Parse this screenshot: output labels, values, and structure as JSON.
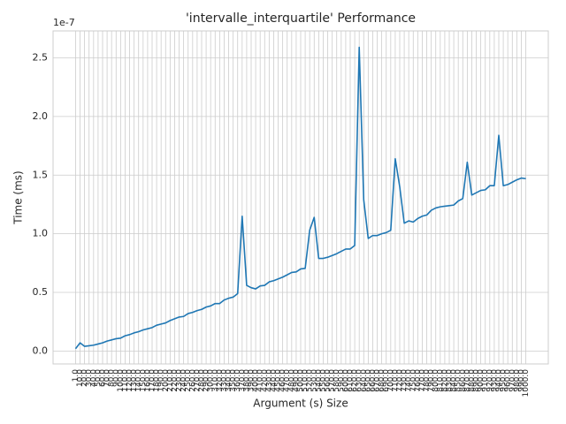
{
  "chart_data": {
    "type": "line",
    "title": "'intervalle_interquartile' Performance",
    "x_label": "Argument (s) Size",
    "y_label": "Time (ms)",
    "y_offset_label": "1e-7",
    "categories": [
      "1.0",
      "10.0",
      "20.0",
      "30.0",
      "40.0",
      "50.0",
      "60.0",
      "70.0",
      "80.0",
      "90.0",
      "100.0",
      "110.0",
      "120.0",
      "130.0",
      "140.0",
      "150.0",
      "160.0",
      "170.0",
      "180.0",
      "190.0",
      "200.0",
      "210.0",
      "220.0",
      "230.0",
      "240.0",
      "250.0",
      "260.0",
      "270.0",
      "280.0",
      "290.0",
      "300.0",
      "310.0",
      "320.0",
      "330.0",
      "340.0",
      "350.0",
      "360.0",
      "370.0",
      "380.0",
      "390.0",
      "400.0",
      "410.0",
      "420.0",
      "430.0",
      "440.0",
      "450.0",
      "460.0",
      "470.0",
      "480.0",
      "490.0",
      "500.0",
      "510.0",
      "520.0",
      "530.0",
      "540.0",
      "550.0",
      "560.0",
      "570.0",
      "580.0",
      "590.0",
      "600.0",
      "610.0",
      "620.0",
      "630.0",
      "640.0",
      "650.0",
      "660.0",
      "670.0",
      "680.0",
      "690.0",
      "700.0",
      "710.0",
      "720.0",
      "730.0",
      "740.0",
      "750.0",
      "760.0",
      "770.0",
      "780.0",
      "790.0",
      "800.0",
      "810.0",
      "820.0",
      "830.0",
      "840.0",
      "850.0",
      "860.0",
      "870.0",
      "880.0",
      "890.0",
      "900.0",
      "910.0",
      "920.0",
      "930.0",
      "940.0",
      "950.0",
      "960.0",
      "970.0",
      "980.0",
      "990.0",
      "1000.0"
    ],
    "series": [
      {
        "name": "intervalle_interquartile",
        "color": "#1f77b4",
        "values": [
          0.02,
          0.07,
          0.04,
          0.045,
          0.05,
          0.06,
          0.07,
          0.085,
          0.095,
          0.105,
          0.11,
          0.13,
          0.14,
          0.155,
          0.165,
          0.18,
          0.19,
          0.2,
          0.22,
          0.23,
          0.24,
          0.26,
          0.275,
          0.29,
          0.295,
          0.32,
          0.33,
          0.345,
          0.355,
          0.375,
          0.385,
          0.405,
          0.405,
          0.435,
          0.45,
          0.46,
          0.49,
          1.15,
          0.56,
          0.54,
          0.53,
          0.555,
          0.56,
          0.59,
          0.6,
          0.615,
          0.63,
          0.65,
          0.67,
          0.675,
          0.7,
          0.705,
          1.03,
          1.14,
          0.79,
          0.79,
          0.8,
          0.815,
          0.83,
          0.85,
          0.87,
          0.87,
          0.9,
          2.59,
          1.29,
          0.96,
          0.985,
          0.985,
          1.0,
          1.01,
          1.03,
          1.64,
          1.4,
          1.09,
          1.11,
          1.1,
          1.13,
          1.15,
          1.16,
          1.2,
          1.22,
          1.23,
          1.235,
          1.24,
          1.245,
          1.28,
          1.3,
          1.61,
          1.33,
          1.35,
          1.37,
          1.375,
          1.41,
          1.41,
          1.84,
          1.41,
          1.42,
          1.44,
          1.46,
          1.475,
          1.47
        ]
      }
    ],
    "ylim": [
      -0.11,
      2.73
    ],
    "yticks": [
      {
        "value": 0,
        "label": "0.0"
      },
      {
        "value": 0.5,
        "label": "0.5"
      },
      {
        "value": 1,
        "label": "1.0"
      },
      {
        "value": 1.5,
        "label": "1.5"
      },
      {
        "value": 2,
        "label": "2.0"
      },
      {
        "value": 2.5,
        "label": "2.5"
      }
    ],
    "grid": true
  }
}
